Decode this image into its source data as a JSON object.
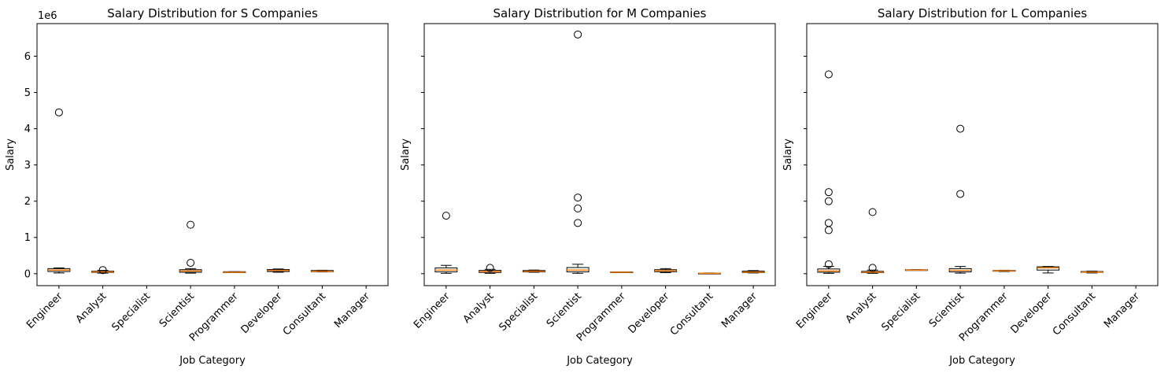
{
  "figure": {
    "exponent_label": "1e6"
  },
  "chart_data": [
    {
      "type": "box",
      "title": "Salary Distribution for S Companies",
      "xlabel": "Job Category",
      "ylabel": "Salary",
      "categories": [
        "Engineer",
        "Analyst",
        "Specialist",
        "Scientist",
        "Programmer",
        "Developer",
        "Consultant",
        "Manager"
      ],
      "yticks": [
        0,
        1000000,
        2000000,
        3000000,
        4000000,
        5000000,
        6000000
      ],
      "ytick_labels": [
        "0",
        "1",
        "2",
        "3",
        "4",
        "5",
        "6"
      ],
      "ylim": [
        -330000,
        6900000
      ],
      "boxes": [
        {
          "q1": 60000,
          "median": 100000,
          "q3": 140000,
          "whislo": 20000,
          "whishi": 160000,
          "fliers": [
            4450000
          ]
        },
        {
          "q1": 35000,
          "median": 50000,
          "q3": 70000,
          "whislo": 15000,
          "whishi": 90000,
          "fliers": [
            100000
          ]
        },
        null,
        {
          "q1": 40000,
          "median": 75000,
          "q3": 110000,
          "whislo": 15000,
          "whishi": 140000,
          "fliers": [
            300000,
            1350000
          ]
        },
        {
          "q1": 30000,
          "median": 40000,
          "q3": 55000,
          "whislo": 30000,
          "whishi": 55000,
          "fliers": []
        },
        {
          "q1": 60000,
          "median": 90000,
          "q3": 115000,
          "whislo": 40000,
          "whishi": 130000,
          "fliers": []
        },
        {
          "q1": 55000,
          "median": 70000,
          "q3": 90000,
          "whislo": 50000,
          "whishi": 95000,
          "fliers": []
        },
        null
      ]
    },
    {
      "type": "box",
      "title": "Salary Distribution for M Companies",
      "xlabel": "Job Category",
      "ylabel": "Salary",
      "categories": [
        "Engineer",
        "Analyst",
        "Specialist",
        "Scientist",
        "Programmer",
        "Developer",
        "Consultant",
        "Manager"
      ],
      "ylim": [
        -330000,
        6900000
      ],
      "boxes": [
        {
          "q1": 50000,
          "median": 100000,
          "q3": 160000,
          "whislo": 10000,
          "whishi": 230000,
          "fliers": [
            1600000
          ]
        },
        {
          "q1": 35000,
          "median": 60000,
          "q3": 90000,
          "whislo": 10000,
          "whishi": 120000,
          "fliers": [
            160000
          ]
        },
        {
          "q1": 50000,
          "median": 70000,
          "q3": 90000,
          "whislo": 40000,
          "whishi": 100000,
          "fliers": []
        },
        {
          "q1": 50000,
          "median": 100000,
          "q3": 170000,
          "whislo": 10000,
          "whishi": 260000,
          "fliers": [
            1400000,
            1800000,
            2100000,
            6600000
          ]
        },
        {
          "q1": 30000,
          "median": 40000,
          "q3": 50000,
          "whislo": 30000,
          "whishi": 50000,
          "fliers": []
        },
        {
          "q1": 55000,
          "median": 80000,
          "q3": 110000,
          "whislo": 30000,
          "whishi": 140000,
          "fliers": []
        },
        {
          "q1": 5000,
          "median": 10000,
          "q3": 15000,
          "whislo": 0,
          "whishi": 20000,
          "fliers": []
        },
        {
          "q1": 30000,
          "median": 45000,
          "q3": 70000,
          "whislo": 20000,
          "whishi": 85000,
          "fliers": []
        }
      ]
    },
    {
      "type": "box",
      "title": "Salary Distribution for L Companies",
      "xlabel": "Job Category",
      "ylabel": "Salary",
      "categories": [
        "Engineer",
        "Analyst",
        "Specialist",
        "Scientist",
        "Programmer",
        "Developer",
        "Consultant",
        "Manager"
      ],
      "ylim": [
        -330000,
        6900000
      ],
      "boxes": [
        {
          "q1": 40000,
          "median": 75000,
          "q3": 130000,
          "whislo": 10000,
          "whishi": 200000,
          "fliers": [
            260000,
            1200000,
            1400000,
            2000000,
            2250000,
            5500000
          ]
        },
        {
          "q1": 30000,
          "median": 45000,
          "q3": 65000,
          "whislo": 10000,
          "whishi": 100000,
          "fliers": [
            160000,
            1700000
          ]
        },
        {
          "q1": 95000,
          "median": 100000,
          "q3": 110000,
          "whislo": 95000,
          "whishi": 110000,
          "fliers": []
        },
        {
          "q1": 50000,
          "median": 90000,
          "q3": 140000,
          "whislo": 15000,
          "whishi": 200000,
          "fliers": [
            2200000,
            4000000
          ]
        },
        {
          "q1": 70000,
          "median": 80000,
          "q3": 90000,
          "whislo": 60000,
          "whishi": 95000,
          "fliers": []
        },
        {
          "q1": 100000,
          "median": 160000,
          "q3": 190000,
          "whislo": 20000,
          "whishi": 200000,
          "fliers": []
        },
        {
          "q1": 35000,
          "median": 45000,
          "q3": 60000,
          "whislo": 20000,
          "whishi": 70000,
          "fliers": []
        },
        null
      ]
    }
  ]
}
